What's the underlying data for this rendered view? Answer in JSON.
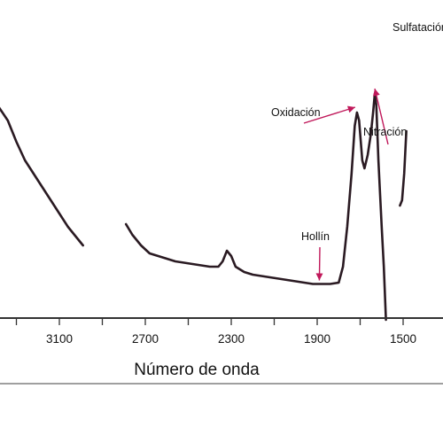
{
  "chart_data": {
    "type": "line",
    "xlabel": "Número de onda",
    "ylabel": "",
    "x_reversed": true,
    "xlim": [
      3390,
      1350
    ],
    "x_ticks": [
      3100,
      2700,
      2300,
      1900,
      1500
    ],
    "grid": false,
    "series": [
      {
        "segments": [
          [
            [
              3390,
              0.66
            ],
            [
              3340,
              0.6
            ],
            [
              3300,
              0.52
            ],
            [
              3260,
              0.45
            ],
            [
              3220,
              0.4
            ],
            [
              3180,
              0.35
            ],
            [
              3140,
              0.3
            ],
            [
              3100,
              0.25
            ],
            [
              3060,
              0.2
            ],
            [
              3020,
              0.16
            ],
            [
              2990,
              0.13
            ]
          ],
          [
            [
              2790,
              0.21
            ],
            [
              2760,
              0.17
            ],
            [
              2720,
              0.13
            ],
            [
              2680,
              0.1
            ],
            [
              2640,
              0.09
            ],
            [
              2600,
              0.08
            ],
            [
              2560,
              0.07
            ],
            [
              2520,
              0.065
            ],
            [
              2480,
              0.06
            ],
            [
              2440,
              0.055
            ],
            [
              2400,
              0.05
            ],
            [
              2360,
              0.05
            ],
            [
              2340,
              0.07
            ],
            [
              2320,
              0.11
            ],
            [
              2300,
              0.09
            ],
            [
              2280,
              0.05
            ],
            [
              2240,
              0.03
            ],
            [
              2200,
              0.02
            ],
            [
              2160,
              0.015
            ],
            [
              2120,
              0.01
            ],
            [
              2080,
              0.005
            ],
            [
              2040,
              0.0
            ],
            [
              2000,
              -0.005
            ],
            [
              1960,
              -0.01
            ],
            [
              1920,
              -0.015
            ],
            [
              1880,
              -0.015
            ],
            [
              1840,
              -0.015
            ],
            [
              1800,
              -0.01
            ],
            [
              1780,
              0.05
            ],
            [
              1760,
              0.2
            ],
            [
              1740,
              0.4
            ],
            [
              1725,
              0.58
            ],
            [
              1715,
              0.63
            ],
            [
              1705,
              0.6
            ],
            [
              1690,
              0.45
            ],
            [
              1680,
              0.42
            ],
            [
              1665,
              0.47
            ],
            [
              1650,
              0.55
            ],
            [
              1640,
              0.63
            ],
            [
              1632,
              0.7
            ],
            [
              1625,
              0.66
            ],
            [
              1615,
              0.45
            ],
            [
              1600,
              0.2
            ],
            [
              1590,
              0.05
            ],
            [
              1580,
              -0.15
            ]
          ],
          [
            [
              1515,
              0.28
            ],
            [
              1505,
              0.3
            ],
            [
              1495,
              0.4
            ],
            [
              1485,
              0.56
            ]
          ]
        ]
      }
    ],
    "annotations": [
      {
        "label": "Sulfatación",
        "x": 1450,
        "y": null
      },
      {
        "label": "Oxidación",
        "x": 1715,
        "y": 0.63
      },
      {
        "label": "Nitración",
        "x": 1632,
        "y": 0.7
      },
      {
        "label": "Hollín",
        "x": 1890,
        "y": -0.015
      }
    ]
  },
  "colors": {
    "spectrum": "#2a1a22",
    "arrow": "#c0185a",
    "axis": "#333333"
  }
}
